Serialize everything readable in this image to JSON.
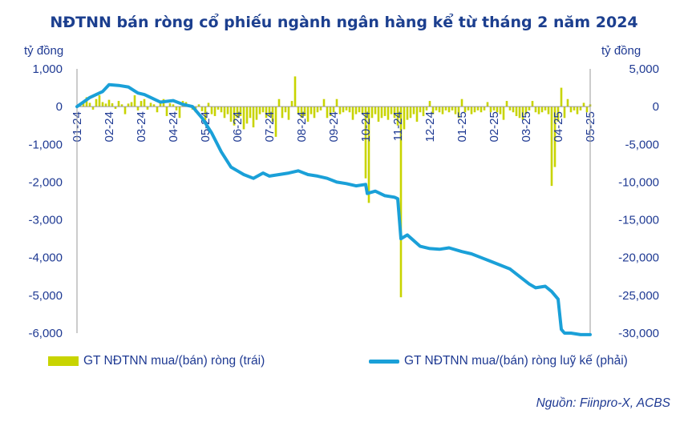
{
  "title": "NĐTNN bán ròng cổ phiếu ngành ngân hàng kể từ tháng 2 năm 2024",
  "source": "Nguồn: Fiinpro-X, ACBS",
  "colors": {
    "bar": "#c8d400",
    "line": "#1aa0d8",
    "text": "#1f3a93",
    "axis": "#999999"
  },
  "chart_data": {
    "type": "bar",
    "title": "NĐTNN bán ròng cổ phiếu ngành ngân hàng kể từ tháng 2 năm 2024",
    "left_axis": {
      "unit": "tỷ đồng",
      "ylim": [
        -6000,
        1000
      ],
      "ticks": [
        "1,000",
        "0",
        "-1,000",
        "-2,000",
        "-3,000",
        "-4,000",
        "-5,000",
        "-6,000"
      ]
    },
    "right_axis": {
      "unit": "tỷ đồng",
      "ylim": [
        -30000,
        5000
      ],
      "ticks": [
        "5,000",
        "0",
        "-5,000",
        "-10,000",
        "-15,000",
        "-20,000",
        "-25,000",
        "-30,000"
      ]
    },
    "x_ticks": [
      "01-24",
      "02-24",
      "03-24",
      "04-24",
      "05-24",
      "06-24",
      "07-24",
      "08-24",
      "09-24",
      "10-24",
      "11-24",
      "12-24",
      "01-25",
      "02-25",
      "03-25",
      "04-25",
      "05-25"
    ],
    "grid": false,
    "legend_position": "bottom",
    "series": [
      {
        "name": "GT NĐTNN mua/(bán) ròng (trái)",
        "type": "bar",
        "axis": "left",
        "x": [
          0.05,
          0.1,
          0.2,
          0.3,
          0.4,
          0.5,
          0.6,
          0.7,
          0.8,
          0.9,
          1.0,
          1.1,
          1.2,
          1.3,
          1.4,
          1.5,
          1.6,
          1.7,
          1.8,
          1.9,
          2.0,
          2.1,
          2.2,
          2.3,
          2.4,
          2.5,
          2.6,
          2.7,
          2.8,
          2.9,
          3.0,
          3.1,
          3.2,
          3.3,
          3.4,
          3.5,
          3.6,
          3.7,
          3.8,
          3.9,
          4.0,
          4.1,
          4.2,
          4.3,
          4.4,
          4.5,
          4.6,
          4.7,
          4.8,
          4.9,
          5.0,
          5.1,
          5.2,
          5.3,
          5.4,
          5.5,
          5.6,
          5.7,
          5.8,
          5.9,
          6.0,
          6.1,
          6.2,
          6.3,
          6.4,
          6.5,
          6.6,
          6.7,
          6.8,
          6.9,
          7.0,
          7.1,
          7.2,
          7.3,
          7.4,
          7.5,
          7.6,
          7.7,
          7.8,
          7.9,
          8.0,
          8.1,
          8.2,
          8.3,
          8.4,
          8.5,
          8.6,
          8.7,
          8.8,
          8.9,
          9.0,
          9.1,
          9.2,
          9.3,
          9.4,
          9.5,
          9.6,
          9.7,
          9.8,
          9.9,
          10.0,
          10.1,
          10.2,
          10.3,
          10.4,
          10.5,
          10.6,
          10.7,
          10.8,
          10.9,
          11.0,
          11.1,
          11.2,
          11.3,
          11.4,
          11.5,
          11.6,
          11.7,
          11.8,
          11.9,
          12.0,
          12.1,
          12.2,
          12.3,
          12.4,
          12.5,
          12.6,
          12.7,
          12.8,
          12.9,
          13.0,
          13.1,
          13.2,
          13.3,
          13.4,
          13.5,
          13.6,
          13.7,
          13.8,
          13.9,
          14.0,
          14.1,
          14.2,
          14.3,
          14.4,
          14.5,
          14.6,
          14.7,
          14.8,
          14.9,
          15.0,
          15.1,
          15.2,
          15.3,
          15.4,
          15.5,
          15.6,
          15.7,
          15.8,
          15.9,
          16.0
        ],
        "values": [
          60,
          90,
          150,
          250,
          100,
          -80,
          200,
          300,
          120,
          80,
          180,
          90,
          -60,
          150,
          60,
          -200,
          80,
          120,
          300,
          -100,
          150,
          200,
          -80,
          100,
          60,
          -150,
          120,
          200,
          -250,
          90,
          60,
          -100,
          -300,
          150,
          120,
          50,
          -80,
          -150,
          60,
          -120,
          -350,
          100,
          -200,
          -250,
          -80,
          -150,
          -300,
          -200,
          -400,
          -500,
          -300,
          -250,
          -600,
          -450,
          -300,
          -550,
          -350,
          -200,
          -150,
          -300,
          -250,
          -400,
          -800,
          200,
          -300,
          -150,
          -350,
          150,
          800,
          -200,
          -300,
          -250,
          -400,
          -200,
          -300,
          -150,
          -100,
          200,
          -300,
          -250,
          -150,
          200,
          -200,
          -150,
          -100,
          -150,
          -350,
          -200,
          -150,
          -200,
          -1900,
          -2550,
          -300,
          -200,
          -400,
          -300,
          -250,
          -350,
          -200,
          -300,
          -500,
          -5050,
          -600,
          -350,
          -300,
          -200,
          -400,
          -150,
          -250,
          -100,
          150,
          -200,
          -100,
          -150,
          -200,
          -100,
          -150,
          -100,
          -200,
          -300,
          200,
          -150,
          -100,
          -200,
          -150,
          -100,
          -150,
          -100,
          120,
          -150,
          -100,
          -150,
          -200,
          -350,
          150,
          -100,
          -150,
          -250,
          -300,
          -350,
          -200,
          -100,
          150,
          -150,
          -200,
          -150,
          -100,
          -200,
          -2100,
          -1600,
          -400,
          500,
          -300,
          200,
          -150,
          -100,
          -200,
          -100,
          100,
          -150,
          60
        ],
        "note": ""
      },
      {
        "name": "GT NĐTNN mua/(bán) ròng luỹ kế (phải)",
        "type": "line",
        "axis": "right",
        "x": [
          0.0,
          0.4,
          0.8,
          1.0,
          1.3,
          1.6,
          1.9,
          2.1,
          2.3,
          2.6,
          3.0,
          3.3,
          3.6,
          3.9,
          4.2,
          4.5,
          4.8,
          5.0,
          5.2,
          5.5,
          5.8,
          6.0,
          6.3,
          6.6,
          6.9,
          7.2,
          7.5,
          7.8,
          8.1,
          8.4,
          8.7,
          9.0,
          9.05,
          9.3,
          9.6,
          9.9,
          10.0,
          10.1,
          10.3,
          10.7,
          11.0,
          11.3,
          11.6,
          12.0,
          12.3,
          12.6,
          12.9,
          13.2,
          13.5,
          13.8,
          14.1,
          14.3,
          14.6,
          14.8,
          15.0,
          15.1,
          15.2,
          15.4,
          15.7,
          16.0
        ],
        "values": [
          0,
          1200,
          2000,
          2900,
          2800,
          2600,
          1800,
          1600,
          1200,
          600,
          800,
          300,
          0,
          -1500,
          -3500,
          -6000,
          -8000,
          -8500,
          -9000,
          -9500,
          -8800,
          -9200,
          -9000,
          -8800,
          -8500,
          -9000,
          -9200,
          -9500,
          -10000,
          -10200,
          -10500,
          -10300,
          -11500,
          -11200,
          -11800,
          -12000,
          -12200,
          -17500,
          -17000,
          -18500,
          -18800,
          -18900,
          -18700,
          -19200,
          -19500,
          -20000,
          -20500,
          -21000,
          -21500,
          -22500,
          -23500,
          -24000,
          -23800,
          -24500,
          -25500,
          -29500,
          -30000,
          -30000,
          -30200,
          -30200
        ],
        "note": ""
      }
    ]
  }
}
